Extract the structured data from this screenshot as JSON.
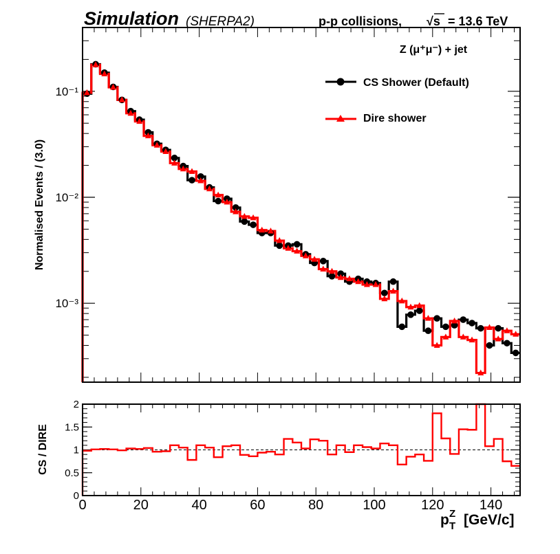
{
  "figure": {
    "title_main": "Simulation",
    "title_generator": "(SHERPA2)",
    "header_right_prefix": "p-p collisions,",
    "header_right_sqrt": "√s",
    "header_right_value": "= 13.6 TeV",
    "process_label": "Z (μ⁺μ⁻) + jet"
  },
  "chart_data": [
    {
      "id": "main",
      "type": "line",
      "style": "step-histogram",
      "yscale": "log",
      "ylabel": "Normalised Events / (3.0)",
      "xlim": [
        0,
        150
      ],
      "ylim": [
        0.00018,
        0.4
      ],
      "yticks": [
        0.1,
        0.01,
        0.001
      ],
      "yticklabels": [
        "10⁻¹",
        "10⁻²",
        "10⁻³"
      ],
      "bin_edges": [
        0,
        3,
        6,
        9,
        12,
        15,
        18,
        21,
        24,
        27,
        30,
        33,
        36,
        39,
        42,
        45,
        48,
        51,
        54,
        57,
        60,
        63,
        66,
        69,
        72,
        75,
        78,
        81,
        84,
        87,
        90,
        93,
        96,
        99,
        102,
        105,
        108,
        111,
        114,
        117,
        120,
        123,
        126,
        129,
        132,
        135,
        138,
        141,
        144,
        147,
        150
      ],
      "series": [
        {
          "name": "CS Shower (Default)",
          "color": "#000000",
          "marker": "circle",
          "values": [
            0.095,
            0.18,
            0.15,
            0.11,
            0.083,
            0.065,
            0.054,
            0.041,
            0.032,
            0.028,
            0.0235,
            0.0197,
            0.0145,
            0.0157,
            0.0124,
            0.0092,
            0.0097,
            0.008,
            0.0059,
            0.0055,
            0.0046,
            0.0046,
            0.0035,
            0.0035,
            0.0036,
            0.0029,
            0.0024,
            0.0025,
            0.0018,
            0.0019,
            0.0016,
            0.0017,
            0.0016,
            0.00155,
            0.00125,
            0.0016,
            0.0006,
            0.00078,
            0.00085,
            0.00055,
            0.00072,
            0.0006,
            0.00062,
            0.0007,
            0.00065,
            0.00058,
            0.0004,
            0.00058,
            0.00042,
            0.00034
          ]
        },
        {
          "name": "Dire shower",
          "color": "#ff0000",
          "marker": "triangle",
          "values": [
            0.097,
            0.178,
            0.146,
            0.109,
            0.083,
            0.062,
            0.052,
            0.038,
            0.031,
            0.027,
            0.021,
            0.0185,
            0.0175,
            0.0143,
            0.012,
            0.0105,
            0.009,
            0.0073,
            0.0066,
            0.0064,
            0.0049,
            0.0048,
            0.0039,
            0.0033,
            0.0031,
            0.0028,
            0.0026,
            0.0021,
            0.002,
            0.00175,
            0.0017,
            0.0016,
            0.0015,
            0.0015,
            0.0011,
            0.0013,
            0.00105,
            0.00092,
            0.00095,
            0.00072,
            0.0004,
            0.00048,
            0.00068,
            0.00048,
            0.00045,
            0.00022,
            0.00059,
            0.00046,
            0.00055,
            0.00051
          ]
        }
      ],
      "legend_position": "top-right"
    },
    {
      "id": "ratio",
      "type": "line",
      "style": "step-histogram",
      "ylabel": "CS / DIRE",
      "xlabel": "p_T^Z [GeV/c]",
      "xlim": [
        0,
        150
      ],
      "ylim": [
        0,
        2
      ],
      "yticks": [
        0,
        0.5,
        1,
        1.5,
        2
      ],
      "yticklabels": [
        "0",
        "0.5",
        "1",
        "1.5",
        "2"
      ],
      "xticks": [
        0,
        20,
        40,
        60,
        80,
        100,
        120,
        140
      ],
      "xticklabels": [
        "0",
        "20",
        "40",
        "60",
        "80",
        "100",
        "120",
        "140"
      ],
      "reference_line": 1,
      "series": [
        {
          "name": "CS / DIRE",
          "color": "#ff0000",
          "values": [
            0.98,
            1.01,
            1.02,
            1.01,
            0.99,
            1.03,
            1.02,
            1.04,
            0.96,
            0.97,
            1.1,
            1.05,
            0.78,
            1.1,
            1.05,
            0.84,
            1.08,
            1.1,
            0.89,
            0.86,
            0.94,
            0.96,
            0.9,
            1.24,
            1.16,
            1.03,
            1.23,
            1.2,
            0.9,
            1.1,
            0.95,
            1.1,
            1.06,
            1.03,
            1.14,
            1.1,
            0.68,
            0.85,
            0.9,
            0.76,
            1.8,
            1.25,
            0.91,
            1.45,
            1.44,
            2.0,
            1.08,
            1.24,
            0.75,
            0.65
          ]
        }
      ]
    }
  ]
}
